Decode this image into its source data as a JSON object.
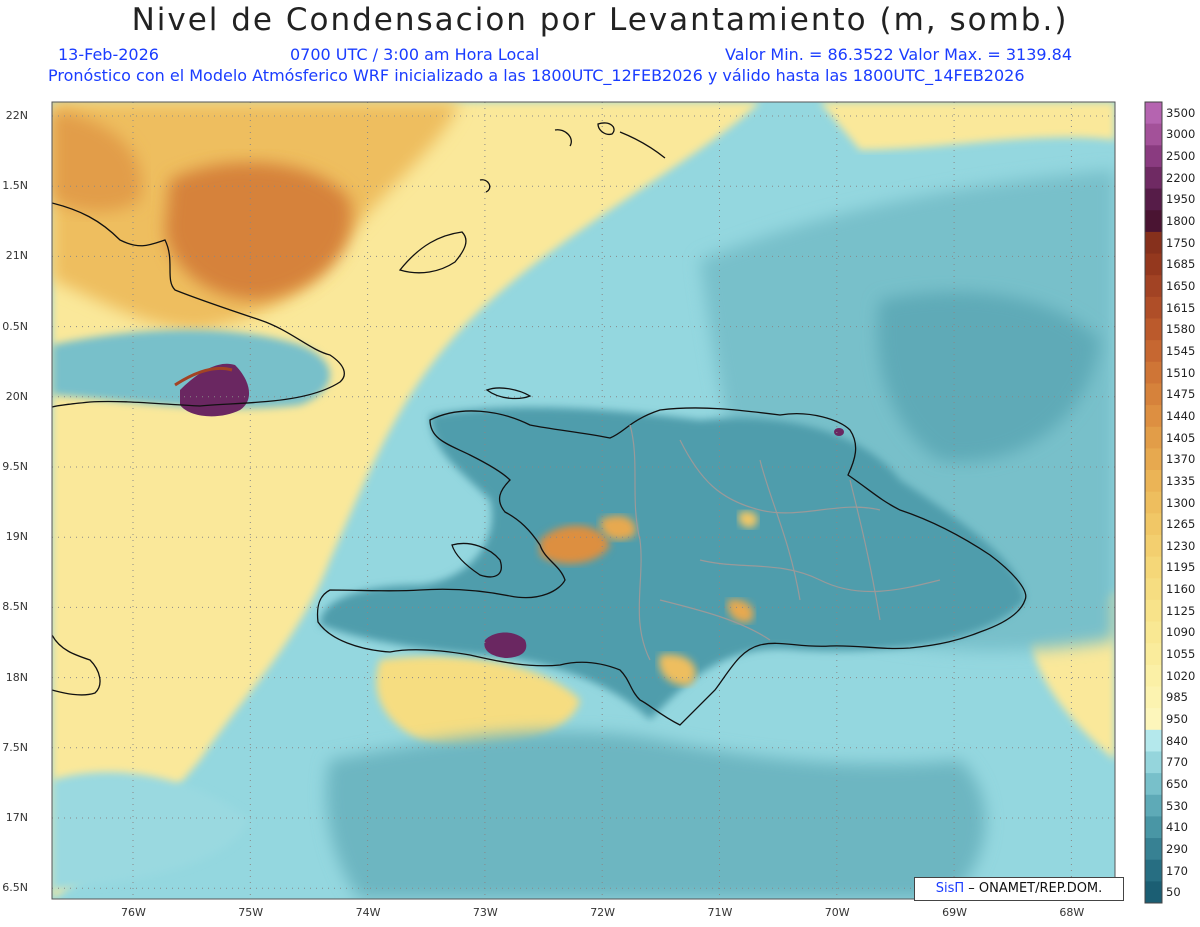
{
  "header": {
    "title": "Nivel de Condensacion por Levantamiento (m, somb.)",
    "date": "13-Feb-2026",
    "time": "0700 UTC / 3:00 am Hora Local",
    "minmax": "Valor Min. = 86.3522  Valor Max. = 3139.84",
    "info": "Pronóstico con el Modelo Atmósferico WRF inicializado a las 1800UTC_12FEB2026 y válido hasta las  1800UTC_14FEB2026"
  },
  "axes": {
    "lat_labels": [
      "22N",
      "1.5N",
      "21N",
      "0.5N",
      "20N",
      "9.5N",
      "19N",
      "8.5N",
      "18N",
      "7.5N",
      "17N",
      "6.5N"
    ],
    "lon_labels": [
      "76W",
      "75W",
      "74W",
      "73W",
      "72W",
      "71W",
      "70W",
      "69W",
      "68W"
    ]
  },
  "colorbar": {
    "labels": [
      "3500",
      "3000",
      "2500",
      "2200",
      "1950",
      "1800",
      "1750",
      "1685",
      "1650",
      "1615",
      "1580",
      "1545",
      "1510",
      "1475",
      "1440",
      "1405",
      "1370",
      "1335",
      "1300",
      "1265",
      "1230",
      "1195",
      "1160",
      "1125",
      "1090",
      "1055",
      "1020",
      "985",
      "950",
      "840",
      "770",
      "650",
      "530",
      "410",
      "290",
      "170",
      "50"
    ],
    "colors": [
      "#b564b0",
      "#a35199",
      "#8a3b80",
      "#6f2a63",
      "#561c48",
      "#4a1432",
      "#86301c",
      "#94381e",
      "#a24324",
      "#af4e28",
      "#bb5a2c",
      "#c66731",
      "#cf7536",
      "#d6823b",
      "#dd8f41",
      "#e29d48",
      "#e7a94f",
      "#ebb456",
      "#eebe5e",
      "#f1c766",
      "#f3cf6f",
      "#f5d778",
      "#f6dd81",
      "#f8e38a",
      "#f9e893",
      "#faec9c",
      "#fbf0a6",
      "#fcf3b0",
      "#fdf6bb",
      "#b4e8ec",
      "#95d5dc",
      "#78c0ca",
      "#5eaab7",
      "#4996a5",
      "#378193",
      "#276e82",
      "#1b5e73"
    ]
  },
  "legend_colors": {
    "land_moist": "#4f9dac",
    "ocean_moist": "#8fd6de",
    "dry_yellow": "#fae89a",
    "dry_orange": "#e9a14c",
    "very_dry": "#c46a2f",
    "extreme": "#6a2761",
    "coast": "#111111",
    "borders": "#9a9a9a"
  },
  "credit": {
    "logo": "SisΠ",
    "text": "– ONAMET/REP.DOM."
  }
}
